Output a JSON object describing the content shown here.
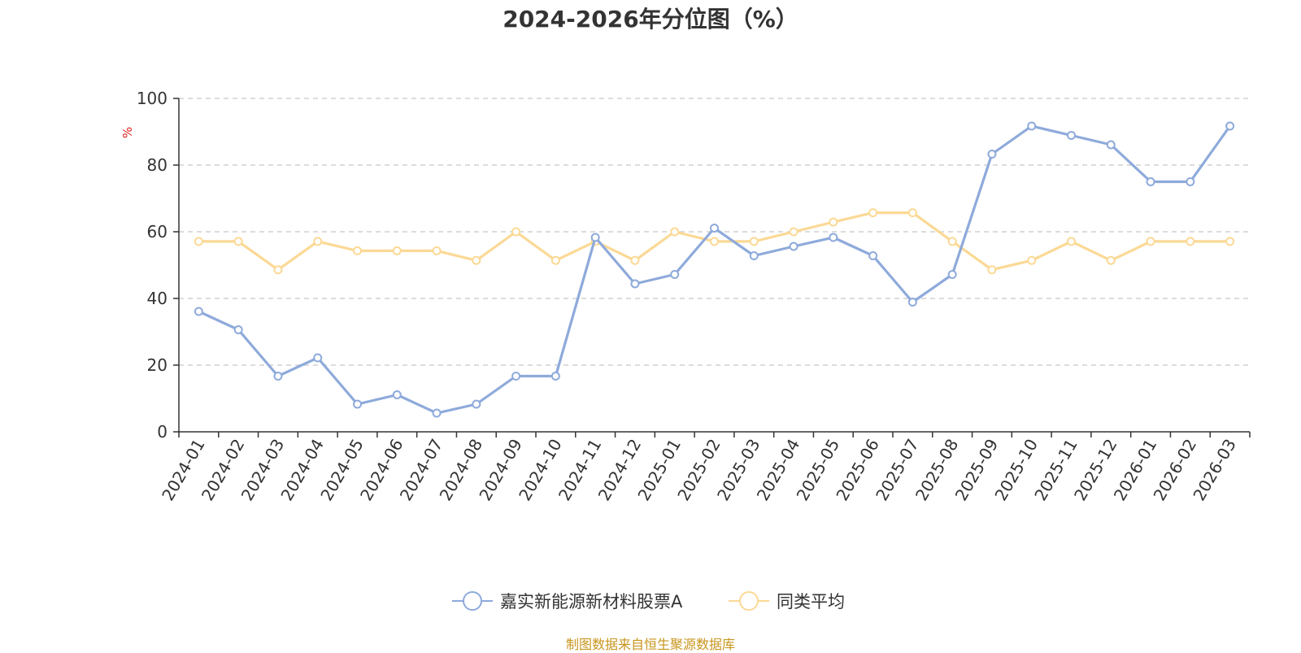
{
  "chart_data": {
    "type": "line",
    "title": "2024-2026年分位图（%）",
    "ylabel": "%",
    "ylim": [
      0,
      100
    ],
    "yticks": [
      0,
      20,
      40,
      60,
      80,
      100
    ],
    "grid": true,
    "legend_position": "bottom-center",
    "categories": [
      "2024-01",
      "2024-02",
      "2024-03",
      "2024-04",
      "2024-05",
      "2024-06",
      "2024-07",
      "2024-08",
      "2024-09",
      "2024-10",
      "2024-11",
      "2024-12",
      "2025-01",
      "2025-02",
      "2025-03",
      "2025-04",
      "2025-05",
      "2025-06",
      "2025-07",
      "2025-08",
      "2025-09",
      "2025-10",
      "2025-11",
      "2025-12",
      "2026-01",
      "2026-02",
      "2026-03"
    ],
    "series": [
      {
        "name": "嘉实新能源新材料股票A",
        "color": "#8eaadb",
        "values": [
          36.1,
          30.6,
          16.7,
          22.2,
          8.3,
          11.1,
          5.6,
          8.3,
          16.7,
          16.7,
          58.3,
          44.4,
          47.2,
          61.1,
          52.8,
          55.6,
          58.3,
          52.8,
          38.9,
          47.2,
          83.3,
          91.7,
          88.9,
          86.1,
          75.0,
          75.0,
          91.7
        ]
      },
      {
        "name": "同类平均",
        "color": "#fbd995",
        "values": [
          57.1,
          57.1,
          48.6,
          57.1,
          54.3,
          54.3,
          54.3,
          51.4,
          60.0,
          51.4,
          57.1,
          51.4,
          60.0,
          57.1,
          57.1,
          60.0,
          62.9,
          65.7,
          65.7,
          57.1,
          48.6,
          51.4,
          57.1,
          51.4,
          57.1,
          57.1,
          57.1
        ]
      }
    ]
  },
  "source_note": "制图数据来自恒生聚源数据库"
}
